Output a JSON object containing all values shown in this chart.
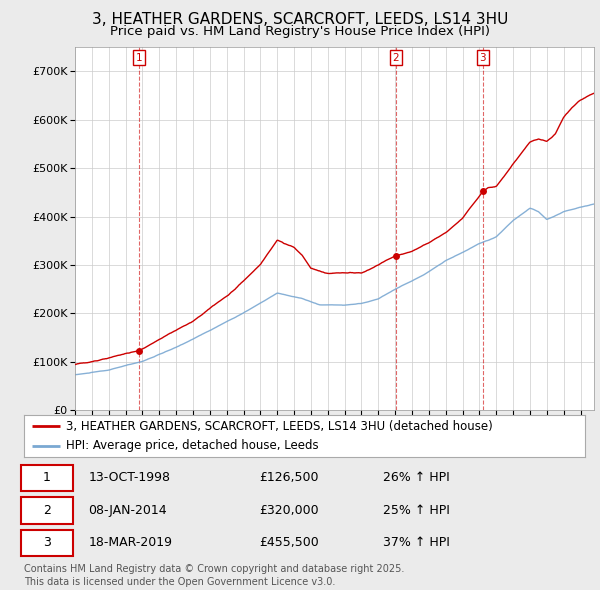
{
  "title": "3, HEATHER GARDENS, SCARCROFT, LEEDS, LS14 3HU",
  "subtitle": "Price paid vs. HM Land Registry's House Price Index (HPI)",
  "ylim": [
    0,
    750000
  ],
  "yticks": [
    0,
    100000,
    200000,
    300000,
    400000,
    500000,
    600000,
    700000
  ],
  "ytick_labels": [
    "£0",
    "£100K",
    "£200K",
    "£300K",
    "£400K",
    "£500K",
    "£600K",
    "£700K"
  ],
  "xlim_start": 1995.0,
  "xlim_end": 2025.8,
  "sale_color": "#cc0000",
  "hpi_color": "#7aa8d2",
  "vline_color": "#cc0000",
  "purchases": [
    {
      "num": 1,
      "date_label": "13-OCT-1998",
      "price": 126500,
      "price_str": "£126,500",
      "pct": "26%",
      "x": 1998.79
    },
    {
      "num": 2,
      "date_label": "08-JAN-2014",
      "price": 320000,
      "price_str": "£320,000",
      "pct": "25%",
      "x": 2014.03
    },
    {
      "num": 3,
      "date_label": "18-MAR-2019",
      "price": 455500,
      "price_str": "£455,500",
      "pct": "37%",
      "x": 2019.21
    }
  ],
  "legend_label_sale": "3, HEATHER GARDENS, SCARCROFT, LEEDS, LS14 3HU (detached house)",
  "legend_label_hpi": "HPI: Average price, detached house, Leeds",
  "footnote": "Contains HM Land Registry data © Crown copyright and database right 2025.\nThis data is licensed under the Open Government Licence v3.0.",
  "background_color": "#ebebeb",
  "plot_bg_color": "#ffffff",
  "title_fontsize": 11,
  "subtitle_fontsize": 9.5,
  "tick_fontsize": 8,
  "legend_fontsize": 8.5,
  "table_fontsize": 9,
  "footnote_fontsize": 7
}
